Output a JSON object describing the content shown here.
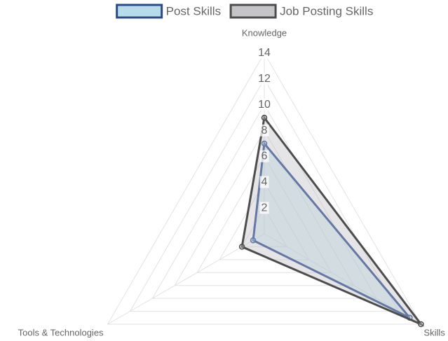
{
  "chart_data": {
    "type": "radar",
    "categories": [
      "Knowledge",
      "Skills",
      "Tools & Technologies"
    ],
    "series": [
      {
        "name": "Post Skills",
        "color": "#2b4a8f",
        "fill": "rgba(173,216,230,0.35)",
        "values": [
          7,
          13,
          1
        ]
      },
      {
        "name": "Job Posting Skills",
        "color": "#4d4d4d",
        "fill": "rgba(190,190,195,0.4)",
        "values": [
          9,
          14,
          2
        ]
      }
    ],
    "rlim": [
      0,
      14
    ],
    "rticks": [
      2,
      4,
      6,
      8,
      10,
      12,
      14
    ],
    "grid": true,
    "legend": "top"
  }
}
